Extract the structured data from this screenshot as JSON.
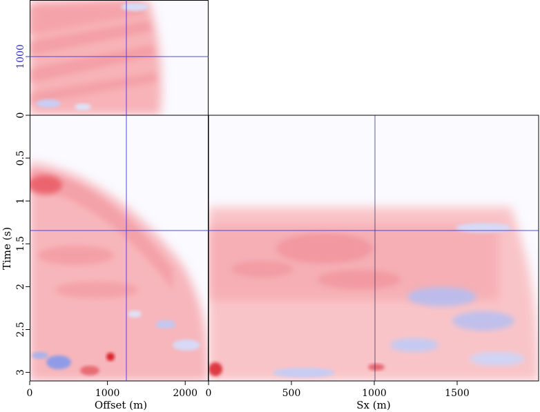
{
  "figure": {
    "panels": {
      "top_left": {
        "name": "offset-vs-midpoint-slice",
        "y_ticks": [
          {
            "label": "1000",
            "value": 1000
          }
        ],
        "y_tick_color": "#3333cc"
      },
      "main_left": {
        "name": "time-vs-offset-panel",
        "x_label": "Offset (m)",
        "y_label": "Time (s)",
        "x_ticks": [
          {
            "label": "0",
            "value": 0
          },
          {
            "label": "1000",
            "value": 1000
          },
          {
            "label": "2000",
            "value": 2000
          }
        ],
        "x_range": [
          0,
          2300
        ],
        "y_ticks": [
          {
            "label": "0",
            "value": 0
          },
          {
            "label": "0.5",
            "value": 0.5
          },
          {
            "label": "1",
            "value": 1
          },
          {
            "label": "1.5",
            "value": 1.5
          },
          {
            "label": "2",
            "value": 2
          },
          {
            "label": "2.5",
            "value": 2.5
          },
          {
            "label": "3",
            "value": 3
          }
        ],
        "y_range": [
          0,
          3.1
        ]
      },
      "main_right": {
        "name": "time-vs-sx-panel",
        "x_label": "Sx (m)",
        "x_ticks": [
          {
            "label": "0",
            "value": 0
          },
          {
            "label": "500",
            "value": 500
          },
          {
            "label": "1000",
            "value": 1000
          },
          {
            "label": "1500",
            "value": 1500
          }
        ],
        "x_range": [
          0,
          2000
        ]
      }
    },
    "crosshair": {
      "offset": 1150,
      "time": 1.35,
      "sx": 1000,
      "midpoint": 1000
    },
    "colors": {
      "positive": "#e8303a",
      "negative": "#3a48d8",
      "background": "#fafaff",
      "crosshair": "#3a3ae0",
      "frame": "#000000"
    }
  }
}
